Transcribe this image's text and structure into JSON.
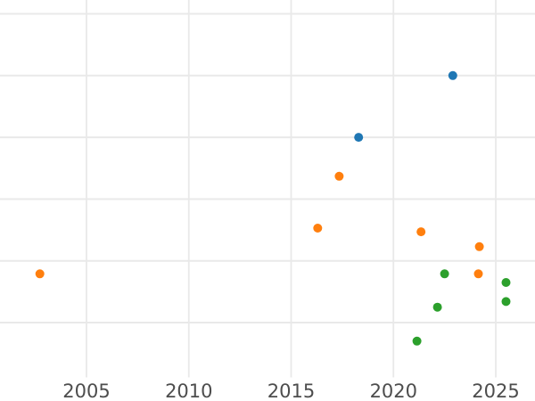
{
  "chart_data": {
    "type": "scatter",
    "title": "",
    "xlabel": "",
    "ylabel": "",
    "x_ticks": [
      2005,
      2010,
      2015,
      2020,
      2025
    ],
    "x_tick_labels": [
      "2005",
      "2010",
      "2015",
      "2020",
      "2025"
    ],
    "xlim": [
      2000.8,
      2026.9
    ],
    "ylim": [
      -0.89,
      5.22
    ],
    "y_gridline_values": [
      0,
      1,
      2,
      3,
      4,
      5
    ],
    "y_tick_labels_visible": false,
    "grid": true,
    "legend_position": "none",
    "marker_diameter_px": 10,
    "series": [
      {
        "name": "blue-series",
        "color": "#1f77b4",
        "points": [
          {
            "x": 2018.3,
            "y": 3.0
          },
          {
            "x": 2022.9,
            "y": 4.0
          }
        ]
      },
      {
        "name": "orange-series",
        "color": "#ff7f0e",
        "points": [
          {
            "x": 2002.72,
            "y": 0.79
          },
          {
            "x": 2016.3,
            "y": 1.53
          },
          {
            "x": 2017.35,
            "y": 2.37
          },
          {
            "x": 2021.35,
            "y": 1.47
          },
          {
            "x": 2024.2,
            "y": 1.23
          },
          {
            "x": 2024.15,
            "y": 0.79
          }
        ]
      },
      {
        "name": "green-series",
        "color": "#2ca02c",
        "points": [
          {
            "x": 2021.15,
            "y": -0.3
          },
          {
            "x": 2022.15,
            "y": 0.25
          },
          {
            "x": 2022.5,
            "y": 0.79
          },
          {
            "x": 2025.5,
            "y": 0.34
          },
          {
            "x": 2025.5,
            "y": 0.65
          }
        ]
      }
    ]
  },
  "colors": {
    "background": "#ffffff",
    "grid": "#e9e9e9",
    "tick_label": "#4d4d4d"
  }
}
